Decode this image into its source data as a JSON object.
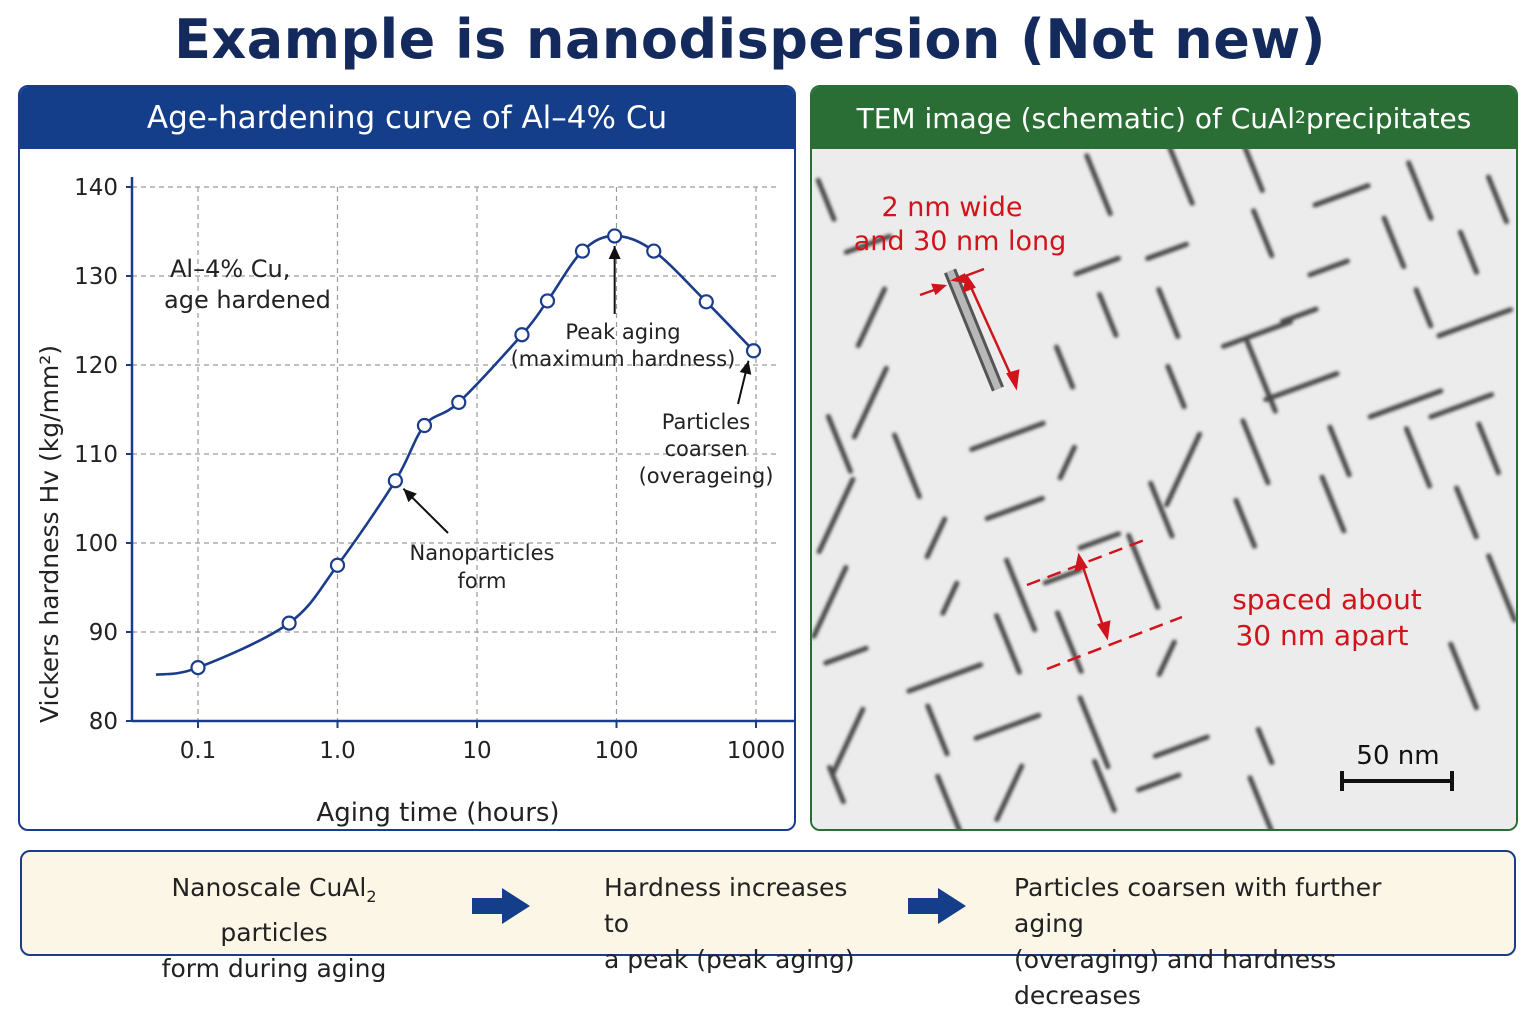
{
  "title": "Example is nanodispersion (Not new)",
  "chart_panel": {
    "header": "Age-hardening curve of Al–4% Cu",
    "legend_line1": "Al–4% Cu,",
    "legend_line2": "age hardened"
  },
  "chart_data": {
    "type": "line",
    "xscale": "log",
    "xlabel": "Aging time (hours)",
    "ylabel": "Vickers hardness Hv (kg/mm²)",
    "xticks": [
      "0.1",
      "1.0",
      "10",
      "100",
      "1000"
    ],
    "yticks": [
      "80",
      "90",
      "100",
      "110",
      "120",
      "130",
      "140"
    ],
    "ylim": [
      80,
      140
    ],
    "xlim": [
      0.05,
      1500
    ],
    "grid": true,
    "series": [
      {
        "points": [
          {
            "x": 0.1,
            "y": 86
          },
          {
            "x": 0.45,
            "y": 91
          },
          {
            "x": 1.0,
            "y": 97.5
          },
          {
            "x": 2.6,
            "y": 107
          },
          {
            "x": 4.2,
            "y": 113.2
          },
          {
            "x": 7.4,
            "y": 115.8
          },
          {
            "x": 21,
            "y": 123.4
          },
          {
            "x": 32,
            "y": 127.2
          },
          {
            "x": 57,
            "y": 132.8
          },
          {
            "x": 97,
            "y": 134.5
          },
          {
            "x": 185,
            "y": 132.8
          },
          {
            "x": 440,
            "y": 127.1
          },
          {
            "x": 960,
            "y": 121.6
          }
        ],
        "curve_start": {
          "x": 0.05,
          "y": 85.2
        }
      }
    ],
    "annotations": [
      {
        "lines": [
          "Peak aging",
          "(maximum hardness)"
        ],
        "target": {
          "x": 97,
          "y": 134.5
        }
      },
      {
        "lines": [
          "Particles",
          "coarsen",
          "(overageing)"
        ],
        "target": {
          "x": 960,
          "y": 121.6
        }
      },
      {
        "lines": [
          "Nanoparticles",
          "form"
        ],
        "target": {
          "x": 2.6,
          "y": 107
        }
      }
    ]
  },
  "tem_panel": {
    "header_prefix": "TEM image (schematic) of CuAl",
    "header_sub": "2",
    "header_suffix": " precipitates",
    "size_label_line1": "2 nm wide",
    "size_label_line2": "and 30 nm long",
    "spacing_label_line1": "spaced about",
    "spacing_label_line2": "30 nm apart",
    "scale_bar_label": "50 nm",
    "annotation_color": "#d0141c"
  },
  "summary": {
    "step1_line1_prefix": "Nanoscale CuAl",
    "step1_line1_sub": "2",
    "step1_line1_suffix": " particles",
    "step1_line2": "form during aging",
    "step2_line1": "Hardness increases to",
    "step2_line2": "a peak (peak aging)",
    "step3_line1": "Particles coarsen with further aging",
    "step3_line2": "(overaging) and hardness decreases"
  },
  "colors": {
    "curve": "#1a3c8a",
    "chart_header": "#143d8a",
    "tem_header": "#2a6e35",
    "summary_bg": "#fcf6e6",
    "arrow": "#143d8a"
  }
}
